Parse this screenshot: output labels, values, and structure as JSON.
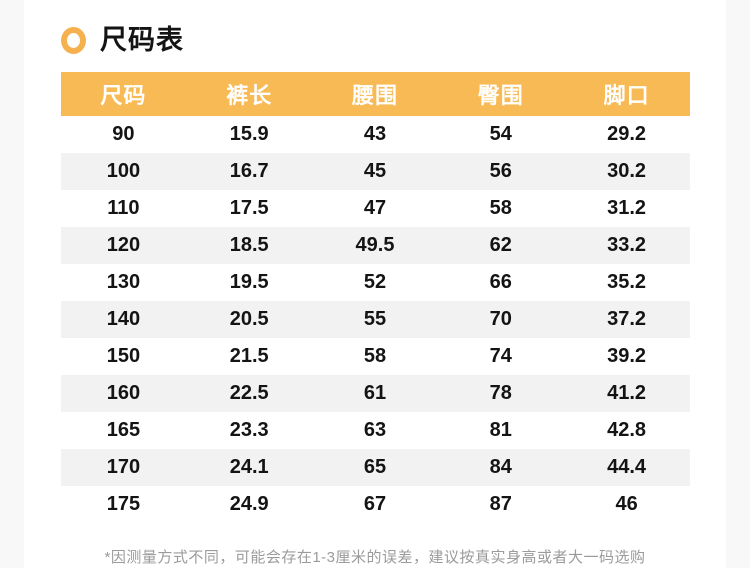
{
  "colors": {
    "accent_orange": "#f7ba55",
    "ring_icon_orange": "#f6b14f",
    "stripe_gray": "#f2f2f2",
    "page_edge_gray": "#f8f8f8",
    "header_text": "#ffffff",
    "body_text": "#141414",
    "note_text": "#9b9b9b"
  },
  "title": {
    "text": "尺码表"
  },
  "size_table": {
    "columns": [
      "尺码",
      "裤长",
      "腰围",
      "臀围",
      "脚口"
    ],
    "rows": [
      [
        "90",
        "15.9",
        "43",
        "54",
        "29.2"
      ],
      [
        "100",
        "16.7",
        "45",
        "56",
        "30.2"
      ],
      [
        "110",
        "17.5",
        "47",
        "58",
        "31.2"
      ],
      [
        "120",
        "18.5",
        "49.5",
        "62",
        "33.2"
      ],
      [
        "130",
        "19.5",
        "52",
        "66",
        "35.2"
      ],
      [
        "140",
        "20.5",
        "55",
        "70",
        "37.2"
      ],
      [
        "150",
        "21.5",
        "58",
        "74",
        "39.2"
      ],
      [
        "160",
        "22.5",
        "61",
        "78",
        "41.2"
      ],
      [
        "165",
        "23.3",
        "63",
        "81",
        "42.8"
      ],
      [
        "170",
        "24.1",
        "65",
        "84",
        "44.4"
      ],
      [
        "175",
        "24.9",
        "67",
        "87",
        "46"
      ]
    ]
  },
  "footnote": "*因测量方式不同，可能会存在1-3厘米的误差，建议按真实身高或者大一码选购"
}
